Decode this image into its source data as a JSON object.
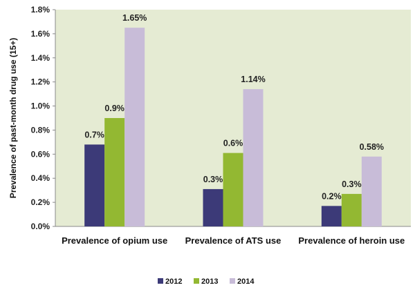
{
  "chart_data": {
    "type": "bar",
    "categories": [
      "Prevalence of opium use",
      "Prevalence of ATS use",
      "Prevalence of heroin use"
    ],
    "series": [
      {
        "name": "2012",
        "values": [
          0.68,
          0.31,
          0.17
        ],
        "labels": [
          "0.7%",
          "0.3%",
          "0.2%"
        ],
        "color": "#3c3a78"
      },
      {
        "name": "2013",
        "values": [
          0.9,
          0.61,
          0.27
        ],
        "labels": [
          "0.9%",
          "0.6%",
          "0.3%"
        ],
        "color": "#93b832"
      },
      {
        "name": "2014",
        "values": [
          1.65,
          1.14,
          0.58
        ],
        "labels": [
          "1.65%",
          "1.14%",
          "0.58%"
        ],
        "color": "#c8bcd8"
      }
    ],
    "ylabel": "Prevalence of past-month drug use (15+)",
    "xlabel": "",
    "title": "",
    "ylim": [
      0,
      1.8
    ],
    "yticks": [
      0,
      0.2,
      0.4,
      0.6,
      0.8,
      1.0,
      1.2,
      1.4,
      1.6,
      1.8
    ],
    "ytick_labels": [
      "0.0%",
      "0.2%",
      "0.4%",
      "0.6%",
      "0.8%",
      "1.0%",
      "1.2%",
      "1.4%",
      "1.6%",
      "1.8%"
    ],
    "grid": false,
    "legend_position": "bottom",
    "plot_background": "#e5ebd3"
  }
}
